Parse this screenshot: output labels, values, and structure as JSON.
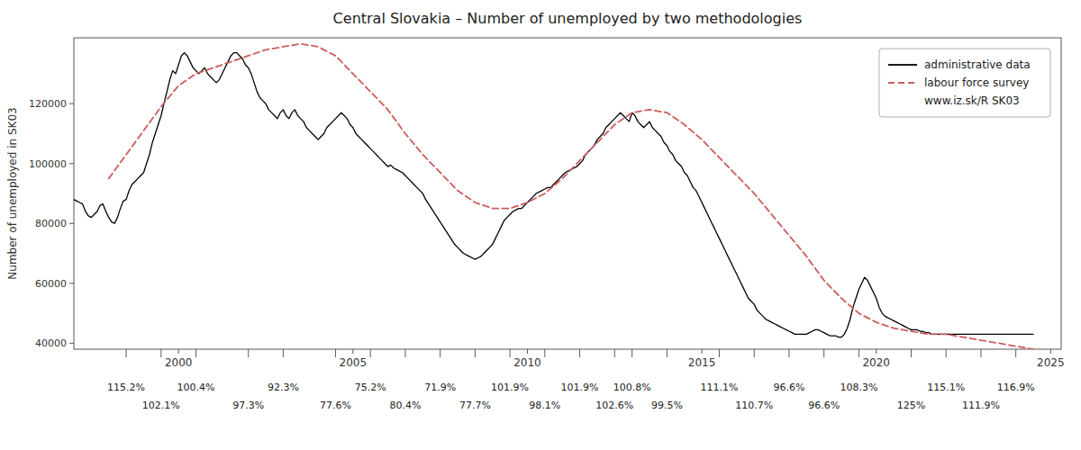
{
  "chart_data": {
    "type": "line",
    "title": "Central Slovakia – Number of unemployed  by two methodologies",
    "y_label": "Number of unemployed in SK03",
    "xlim": [
      1997.0,
      2025.3
    ],
    "ylim": [
      38000,
      142000
    ],
    "xticks": [
      2000,
      2005,
      2010,
      2015,
      2020,
      2025
    ],
    "yticks": [
      40000,
      60000,
      80000,
      100000,
      120000
    ],
    "grid": false,
    "legend": "upper right",
    "series": [
      {
        "name": "administrative data",
        "color": "#000000",
        "line_style": "solid",
        "x": [
          1997.0,
          1997.083,
          1997.167,
          1997.25,
          1997.333,
          1997.417,
          1997.5,
          1997.583,
          1997.667,
          1997.75,
          1997.833,
          1997.917,
          1998.0,
          1998.083,
          1998.167,
          1998.25,
          1998.333,
          1998.417,
          1998.5,
          1998.583,
          1998.667,
          1998.75,
          1998.833,
          1998.917,
          1999.0,
          1999.083,
          1999.167,
          1999.25,
          1999.333,
          1999.417,
          1999.5,
          1999.583,
          1999.667,
          1999.75,
          1999.833,
          1999.917,
          2000.0,
          2000.083,
          2000.167,
          2000.25,
          2000.333,
          2000.417,
          2000.5,
          2000.583,
          2000.667,
          2000.75,
          2000.833,
          2000.917,
          2001.0,
          2001.083,
          2001.167,
          2001.25,
          2001.333,
          2001.417,
          2001.5,
          2001.583,
          2001.667,
          2001.75,
          2001.833,
          2001.917,
          2002.0,
          2002.083,
          2002.167,
          2002.25,
          2002.333,
          2002.417,
          2002.5,
          2002.583,
          2002.667,
          2002.75,
          2002.833,
          2002.917,
          2003.0,
          2003.083,
          2003.167,
          2003.25,
          2003.333,
          2003.417,
          2003.5,
          2003.583,
          2003.667,
          2003.75,
          2003.833,
          2003.917,
          2004.0,
          2004.083,
          2004.167,
          2004.25,
          2004.333,
          2004.417,
          2004.5,
          2004.583,
          2004.667,
          2004.75,
          2004.833,
          2004.917,
          2005.0,
          2005.083,
          2005.167,
          2005.25,
          2005.333,
          2005.417,
          2005.5,
          2005.583,
          2005.667,
          2005.75,
          2005.833,
          2005.917,
          2006.0,
          2006.083,
          2006.167,
          2006.25,
          2006.333,
          2006.417,
          2006.5,
          2006.583,
          2006.667,
          2006.75,
          2006.833,
          2006.917,
          2007.0,
          2007.083,
          2007.167,
          2007.25,
          2007.333,
          2007.417,
          2007.5,
          2007.583,
          2007.667,
          2007.75,
          2007.833,
          2007.917,
          2008.0,
          2008.083,
          2008.167,
          2008.25,
          2008.333,
          2008.417,
          2008.5,
          2008.583,
          2008.667,
          2008.75,
          2008.833,
          2008.917,
          2009.0,
          2009.083,
          2009.167,
          2009.25,
          2009.333,
          2009.417,
          2009.5,
          2009.583,
          2009.667,
          2009.75,
          2009.833,
          2009.917,
          2010.0,
          2010.083,
          2010.167,
          2010.25,
          2010.333,
          2010.417,
          2010.5,
          2010.583,
          2010.667,
          2010.75,
          2010.833,
          2010.917,
          2011.0,
          2011.083,
          2011.167,
          2011.25,
          2011.333,
          2011.417,
          2011.5,
          2011.583,
          2011.667,
          2011.75,
          2011.833,
          2011.917,
          2012.0,
          2012.083,
          2012.167,
          2012.25,
          2012.333,
          2012.417,
          2012.5,
          2012.583,
          2012.667,
          2012.75,
          2012.833,
          2012.917,
          2013.0,
          2013.083,
          2013.167,
          2013.25,
          2013.333,
          2013.417,
          2013.5,
          2013.583,
          2013.667,
          2013.75,
          2013.833,
          2013.917,
          2014.0,
          2014.083,
          2014.167,
          2014.25,
          2014.333,
          2014.417,
          2014.5,
          2014.583,
          2014.667,
          2014.75,
          2014.833,
          2014.917,
          2015.0,
          2015.083,
          2015.167,
          2015.25,
          2015.333,
          2015.417,
          2015.5,
          2015.583,
          2015.667,
          2015.75,
          2015.833,
          2015.917,
          2016.0,
          2016.083,
          2016.167,
          2016.25,
          2016.333,
          2016.417,
          2016.5,
          2016.583,
          2016.667,
          2016.75,
          2016.833,
          2016.917,
          2017.0,
          2017.083,
          2017.167,
          2017.25,
          2017.333,
          2017.417,
          2017.5,
          2017.583,
          2017.667,
          2017.75,
          2017.833,
          2017.917,
          2018.0,
          2018.083,
          2018.167,
          2018.25,
          2018.333,
          2018.417,
          2018.5,
          2018.583,
          2018.667,
          2018.75,
          2018.833,
          2018.917,
          2019.0,
          2019.083,
          2019.167,
          2019.25,
          2019.333,
          2019.417,
          2019.5,
          2019.583,
          2019.667,
          2019.75,
          2019.833,
          2019.917,
          2020.0,
          2020.083,
          2020.167,
          2020.25,
          2020.333,
          2020.417,
          2020.5,
          2020.583,
          2020.667,
          2020.75,
          2020.833,
          2020.917,
          2021.0,
          2021.083,
          2021.167,
          2021.25,
          2021.333,
          2021.417,
          2021.5,
          2021.583,
          2021.667,
          2021.75,
          2021.833,
          2021.917,
          2022.0,
          2022.083,
          2022.167,
          2022.25,
          2022.333,
          2022.417,
          2022.5,
          2022.583,
          2022.667,
          2022.75,
          2022.833,
          2022.917,
          2023.0,
          2023.083,
          2023.167,
          2023.25,
          2023.333,
          2023.417,
          2023.5,
          2023.583,
          2023.667,
          2023.75,
          2023.833,
          2023.917,
          2024.0,
          2024.083,
          2024.167,
          2024.25,
          2024.333,
          2024.417,
          2024.5
        ],
        "values": [
          88000,
          87500,
          87000,
          86500,
          84000,
          82500,
          82000,
          83000,
          84000,
          86000,
          86500,
          84000,
          82000,
          80500,
          80000,
          82000,
          85000,
          87500,
          88000,
          91000,
          93000,
          94000,
          95000,
          96000,
          97000,
          100000,
          103000,
          107000,
          110000,
          113000,
          116000,
          120000,
          124000,
          128000,
          131000,
          130000,
          133000,
          136000,
          137000,
          136000,
          134000,
          132000,
          131000,
          130000,
          131000,
          132000,
          130000,
          129000,
          128000,
          127000,
          128000,
          130000,
          132000,
          134000,
          136000,
          137000,
          137000,
          136000,
          135000,
          133000,
          132000,
          130000,
          127000,
          124000,
          122000,
          121000,
          120000,
          118000,
          117000,
          116000,
          115000,
          117000,
          118000,
          116000,
          115000,
          117000,
          118000,
          116000,
          115000,
          114000,
          112000,
          111000,
          110000,
          109000,
          108000,
          109000,
          110000,
          112000,
          113000,
          114000,
          115000,
          116000,
          117000,
          116000,
          115000,
          113000,
          112000,
          110000,
          109000,
          108000,
          107000,
          106000,
          105000,
          104000,
          103000,
          102000,
          101000,
          100000,
          99000,
          99500,
          98500,
          98000,
          97500,
          97000,
          96000,
          95000,
          94000,
          93000,
          92000,
          91000,
          90000,
          88000,
          86500,
          85000,
          83500,
          82000,
          80500,
          79000,
          77500,
          76000,
          74500,
          73000,
          72000,
          71000,
          70000,
          69500,
          69000,
          68500,
          68000,
          68500,
          69000,
          70000,
          71000,
          72000,
          73000,
          75000,
          77000,
          79000,
          81000,
          82000,
          83000,
          84000,
          84500,
          85000,
          85000,
          86000,
          87000,
          88000,
          89000,
          90000,
          90500,
          91000,
          91500,
          92000,
          92000,
          93000,
          94000,
          95000,
          96000,
          97000,
          97500,
          98000,
          98500,
          99000,
          100000,
          101000,
          103000,
          104000,
          105000,
          106000,
          108000,
          109000,
          110000,
          112000,
          113000,
          114000,
          115000,
          116000,
          117000,
          116000,
          115000,
          114000,
          117000,
          116000,
          114000,
          113000,
          112000,
          113000,
          114000,
          112000,
          111000,
          110000,
          109000,
          107000,
          106000,
          104000,
          103000,
          101000,
          100000,
          99000,
          97000,
          96000,
          94000,
          92000,
          91000,
          89000,
          87000,
          85000,
          83000,
          81000,
          79000,
          77000,
          75000,
          73000,
          71000,
          69000,
          67000,
          65000,
          63000,
          61000,
          59000,
          57000,
          55000,
          54000,
          53000,
          51000,
          50000,
          49000,
          48000,
          47500,
          47000,
          46500,
          46000,
          45500,
          45000,
          44500,
          44000,
          43500,
          43000,
          43000,
          43000,
          43000,
          43000,
          43500,
          44000,
          44500,
          44500,
          44000,
          43500,
          43000,
          42500,
          42500,
          42500,
          42000,
          42000,
          43000,
          45000,
          48000,
          52000,
          55000,
          58000,
          60000,
          62000,
          61000,
          59000,
          57000,
          55000,
          52000,
          50000,
          49000,
          48500,
          48000,
          47500,
          47000,
          46500,
          46000,
          45500,
          45000,
          44500,
          44500,
          44500,
          44000,
          44000,
          43500,
          43500,
          43000,
          43000,
          43000,
          43000,
          43000,
          43000,
          43000,
          43000,
          43000,
          43000,
          43000,
          43000,
          43000,
          43000,
          43000,
          43000,
          43000,
          43000,
          43000,
          43000,
          43000,
          43000,
          43000,
          43000,
          43000,
          43000,
          43000,
          43000,
          43000,
          43000,
          43000,
          43000,
          43000,
          43000,
          43000,
          43000
        ]
      },
      {
        "name": "labour force survey",
        "color": "#cd5c5c",
        "line_style": "dashed",
        "x": [
          1998.0,
          1998.5,
          1999.0,
          1999.5,
          2000.0,
          2000.5,
          2001.0,
          2001.5,
          2002.0,
          2002.5,
          2003.0,
          2003.5,
          2004.0,
          2004.5,
          2005.0,
          2005.5,
          2006.0,
          2006.5,
          2007.0,
          2007.5,
          2008.0,
          2008.5,
          2009.0,
          2009.5,
          2010.0,
          2010.5,
          2011.0,
          2011.5,
          2012.0,
          2012.5,
          2013.0,
          2013.5,
          2014.0,
          2014.5,
          2015.0,
          2015.5,
          2016.0,
          2016.5,
          2017.0,
          2017.5,
          2018.0,
          2018.5,
          2019.0,
          2019.5,
          2020.0,
          2020.5,
          2021.0,
          2021.5,
          2022.0,
          2022.5,
          2023.0,
          2023.5,
          2024.0,
          2024.5
        ],
        "values": [
          95000,
          103000,
          111000,
          119000,
          126000,
          130000,
          132000,
          134000,
          136000,
          138000,
          139000,
          140000,
          139000,
          136000,
          130000,
          124000,
          118000,
          110000,
          103000,
          97000,
          91000,
          87000,
          85000,
          85000,
          87000,
          90000,
          95000,
          101000,
          107000,
          113000,
          117000,
          118000,
          117000,
          113000,
          108000,
          102000,
          96000,
          90000,
          83000,
          76000,
          69000,
          61000,
          55000,
          50000,
          47000,
          45000,
          44000,
          43000,
          43000,
          42000,
          41000,
          40000,
          39000,
          38000
        ]
      }
    ],
    "annotations": [
      {
        "text": "www.iz.sk/R SK03"
      },
      {
        "x": 1999.5,
        "text": "102.1%"
      },
      {
        "x": 2002.0,
        "text": "97.3%"
      },
      {
        "x": 2004.5,
        "text": "77.6%"
      },
      {
        "x": 2006.5,
        "text": "80.4%"
      },
      {
        "x": 2008.5,
        "text": "77.7%"
      },
      {
        "x": 2010.5,
        "text": "98.1%"
      },
      {
        "x": 2012.5,
        "text": "102.6%"
      },
      {
        "x": 2014.0,
        "text": "99.5%"
      },
      {
        "x": 2016.5,
        "text": "110.7%"
      },
      {
        "x": 2018.5,
        "text": "96.6%"
      },
      {
        "x": 2021.0,
        "text": "125%"
      },
      {
        "x": 2023.0,
        "text": "111.9%"
      },
      {
        "x": 1998.5,
        "text": "115.2%"
      },
      {
        "x": 2000.5,
        "text": "100.4%"
      },
      {
        "x": 2003.0,
        "text": "92.3%"
      },
      {
        "x": 2005.5,
        "text": "75.2%"
      },
      {
        "x": 2007.5,
        "text": "71.9%"
      },
      {
        "x": 2009.5,
        "text": "101.9%"
      },
      {
        "x": 2011.5,
        "text": "101.9%"
      },
      {
        "x": 2013.0,
        "text": "100.8%"
      },
      {
        "x": 2015.5,
        "text": "111.1%"
      },
      {
        "x": 2017.5,
        "text": "96.6%"
      },
      {
        "x": 2019.5,
        "text": "108.3%"
      },
      {
        "x": 2022.0,
        "text": "115.1%"
      },
      {
        "x": 2024.0,
        "text": "116.9%"
      }
    ]
  }
}
